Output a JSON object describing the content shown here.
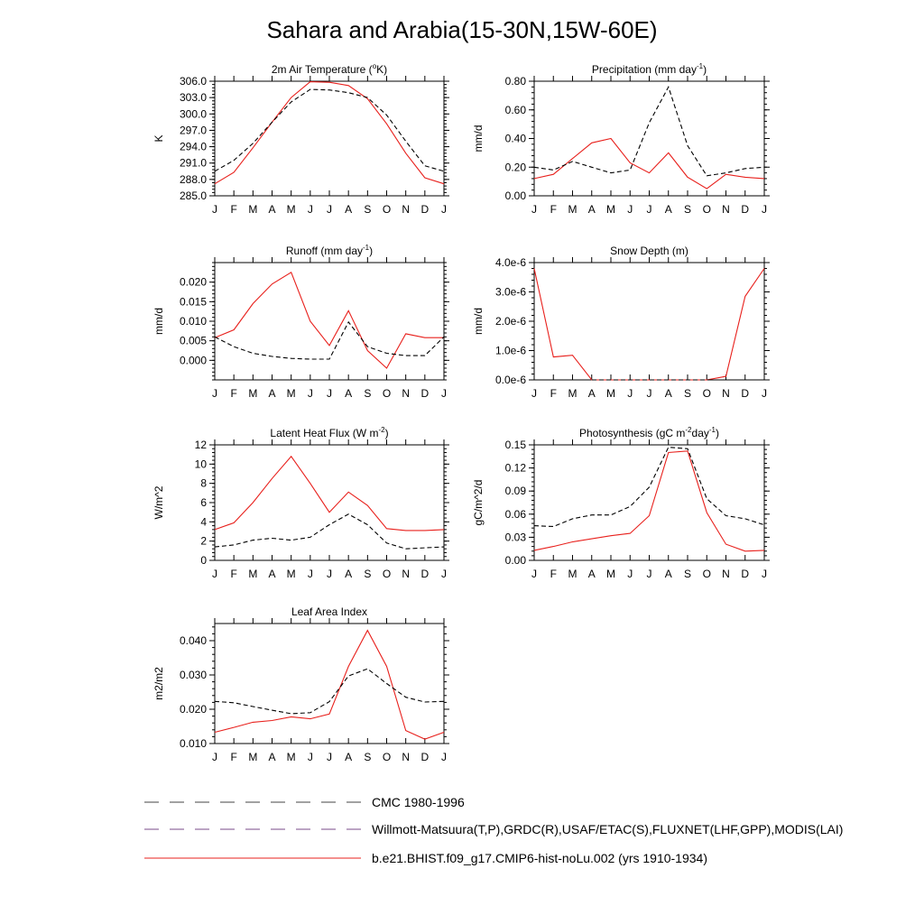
{
  "figure": {
    "title": "Sahara and Arabia(15-30N,15W-60E)"
  },
  "colors": {
    "observed": "#000000",
    "model": "#e8201c",
    "legend_mixed": "#7a4a8a"
  },
  "legend": {
    "entries": [
      {
        "label": "CMC 1980-1996",
        "style": "dashed",
        "color": "#444444"
      },
      {
        "label": "Willmott-Matsuura(T,P),GRDC(R),USAF/ETAC(S),FLUXNET(LHF,GPP),MODIS(LAI)",
        "style": "dashed",
        "color": "#7a4a8a"
      },
      {
        "label": "b.e21.BHIST.f09_g17.CMIP6-hist-noLu.002 (yrs 1910-1934)",
        "style": "solid",
        "color": "#e8201c"
      }
    ]
  },
  "chart_data": [
    {
      "type": "line",
      "title_main": "2m Air Temperature (",
      "title_sup": "o",
      "title_end": "K)",
      "ylabel": "K",
      "x": [
        "J",
        "F",
        "M",
        "A",
        "M",
        "J",
        "J",
        "A",
        "S",
        "O",
        "N",
        "D",
        "J"
      ],
      "ylim": [
        285.0,
        306.0
      ],
      "yticks": [
        "306.0",
        "303.0",
        "300.0",
        "297.0",
        "294.0",
        "291.0",
        "288.0",
        "285.0"
      ],
      "ytick_values": [
        306,
        303,
        300,
        297,
        294,
        291,
        288,
        285
      ],
      "series": [
        {
          "role": "model",
          "values": [
            287.2,
            289.3,
            293.8,
            298.5,
            303.0,
            305.9,
            305.8,
            305.2,
            302.8,
            298.2,
            292.8,
            288.3,
            287.2
          ]
        },
        {
          "role": "observed",
          "values": [
            289.5,
            291.5,
            294.6,
            298.5,
            302.2,
            304.5,
            304.4,
            303.9,
            303.0,
            299.8,
            295.0,
            290.5,
            289.5
          ]
        }
      ]
    },
    {
      "type": "line",
      "title_main": "Precipitation (mm day",
      "title_sup": "-1",
      "title_end": ")",
      "ylabel": "mm/d",
      "x": [
        "J",
        "F",
        "M",
        "A",
        "M",
        "J",
        "J",
        "A",
        "S",
        "O",
        "N",
        "D",
        "J"
      ],
      "ylim": [
        0.0,
        0.8
      ],
      "yticks": [
        "0.80",
        "0.60",
        "0.40",
        "0.20",
        "0.00"
      ],
      "ytick_values": [
        0.8,
        0.6,
        0.4,
        0.2,
        0.0
      ],
      "series": [
        {
          "role": "model",
          "values": [
            0.12,
            0.15,
            0.26,
            0.37,
            0.4,
            0.23,
            0.16,
            0.3,
            0.13,
            0.05,
            0.15,
            0.13,
            0.12
          ]
        },
        {
          "role": "observed",
          "values": [
            0.2,
            0.18,
            0.24,
            0.2,
            0.16,
            0.18,
            0.51,
            0.76,
            0.35,
            0.14,
            0.16,
            0.19,
            0.2
          ]
        }
      ]
    },
    {
      "type": "line",
      "title_main": "Runoff (mm day",
      "title_sup": "-1",
      "title_end": ")",
      "ylabel": "mm/d",
      "x": [
        "J",
        "F",
        "M",
        "A",
        "M",
        "J",
        "J",
        "A",
        "S",
        "O",
        "N",
        "D",
        "J"
      ],
      "ylim": [
        -0.005,
        0.025
      ],
      "yticks": [
        "0.020",
        "0.015",
        "0.010",
        "0.005",
        "0.000"
      ],
      "ytick_values": [
        0.02,
        0.015,
        0.01,
        0.005,
        0.0
      ],
      "series": [
        {
          "role": "model",
          "values": [
            0.0058,
            0.0078,
            0.0145,
            0.0195,
            0.0225,
            0.01,
            0.0038,
            0.0127,
            0.0025,
            -0.002,
            0.0068,
            0.0058,
            0.0058
          ]
        },
        {
          "role": "observed",
          "values": [
            0.006,
            0.0035,
            0.0018,
            0.001,
            0.0005,
            0.0003,
            0.0003,
            0.0098,
            0.0035,
            0.0018,
            0.0012,
            0.0012,
            0.006
          ]
        }
      ]
    },
    {
      "type": "line",
      "title_main": "Snow Depth (m)",
      "title_sup": "",
      "title_end": "",
      "ylabel": "mm/d",
      "x": [
        "J",
        "F",
        "M",
        "A",
        "M",
        "J",
        "J",
        "A",
        "S",
        "O",
        "N",
        "D",
        "J"
      ],
      "ylim": [
        0.0,
        4e-06
      ],
      "yticks": [
        "4.0e-6",
        "3.0e-6",
        "2.0e-6",
        "1.0e-6",
        "0.0e-6"
      ],
      "ytick_values": [
        4e-06,
        3e-06,
        2e-06,
        1e-06,
        0.0
      ],
      "series": [
        {
          "role": "model",
          "values": [
            3.8e-06,
            7.8e-07,
            8.4e-07,
            0.0,
            0.0,
            0.0,
            0.0,
            0.0,
            0.0,
            0.0,
            1.2e-07,
            2.85e-06,
            3.8e-06
          ]
        },
        {
          "role": "observed",
          "values": [
            0,
            0,
            0,
            0,
            0,
            0,
            0,
            0,
            0,
            0,
            0,
            0,
            0
          ]
        }
      ]
    },
    {
      "type": "line",
      "title_main": "Latent Heat Flux (W m",
      "title_sup": "-2",
      "title_end": ")",
      "ylabel": "W/m^2",
      "x": [
        "J",
        "F",
        "M",
        "A",
        "M",
        "J",
        "J",
        "A",
        "S",
        "O",
        "N",
        "D",
        "J"
      ],
      "ylim": [
        0,
        12
      ],
      "yticks": [
        "12",
        "10",
        "8",
        "6",
        "4",
        "2",
        "0"
      ],
      "ytick_values": [
        12,
        10,
        8,
        6,
        4,
        2,
        0
      ],
      "series": [
        {
          "role": "model",
          "values": [
            3.2,
            3.9,
            6.0,
            8.5,
            10.8,
            8.0,
            5.0,
            7.1,
            5.7,
            3.3,
            3.1,
            3.1,
            3.2
          ]
        },
        {
          "role": "observed",
          "values": [
            1.4,
            1.6,
            2.1,
            2.3,
            2.1,
            2.4,
            3.7,
            4.8,
            3.7,
            1.8,
            1.2,
            1.3,
            1.4
          ]
        }
      ]
    },
    {
      "type": "line",
      "title_main": "Photosynthesis (gC m",
      "title_sup": "-2",
      "title_end": "day",
      "title_sup2": "-1",
      "title_end2": ")",
      "ylabel": "gC/m^2/d",
      "x": [
        "J",
        "F",
        "M",
        "A",
        "M",
        "J",
        "J",
        "A",
        "S",
        "O",
        "N",
        "D",
        "J"
      ],
      "ylim": [
        0.0,
        0.15
      ],
      "yticks": [
        "0.15",
        "0.12",
        "0.09",
        "0.06",
        "0.03",
        "0.00"
      ],
      "ytick_values": [
        0.15,
        0.12,
        0.09,
        0.06,
        0.03,
        0.0
      ],
      "series": [
        {
          "role": "model",
          "values": [
            0.013,
            0.018,
            0.024,
            0.028,
            0.032,
            0.035,
            0.058,
            0.14,
            0.142,
            0.062,
            0.021,
            0.012,
            0.013
          ]
        },
        {
          "role": "observed",
          "values": [
            0.045,
            0.044,
            0.054,
            0.059,
            0.059,
            0.07,
            0.095,
            0.147,
            0.145,
            0.08,
            0.058,
            0.054,
            0.046
          ]
        }
      ]
    },
    {
      "type": "line",
      "title_main": "Leaf Area Index",
      "title_sup": "",
      "title_end": "",
      "ylabel": "m2/m2",
      "x": [
        "J",
        "F",
        "M",
        "A",
        "M",
        "J",
        "J",
        "A",
        "S",
        "O",
        "N",
        "D",
        "J"
      ],
      "ylim": [
        0.01,
        0.045
      ],
      "yticks": [
        "0.040",
        "0.030",
        "0.020",
        "0.010"
      ],
      "ytick_values": [
        0.04,
        0.03,
        0.02,
        0.01
      ],
      "series": [
        {
          "role": "model",
          "values": [
            0.0133,
            0.0147,
            0.0162,
            0.0167,
            0.0178,
            0.0172,
            0.0186,
            0.0325,
            0.043,
            0.0325,
            0.0138,
            0.0113,
            0.0133
          ]
        },
        {
          "role": "observed",
          "values": [
            0.0223,
            0.0219,
            0.0208,
            0.0197,
            0.0187,
            0.019,
            0.0222,
            0.0297,
            0.0318,
            0.0275,
            0.0235,
            0.0221,
            0.0223
          ]
        }
      ]
    }
  ]
}
